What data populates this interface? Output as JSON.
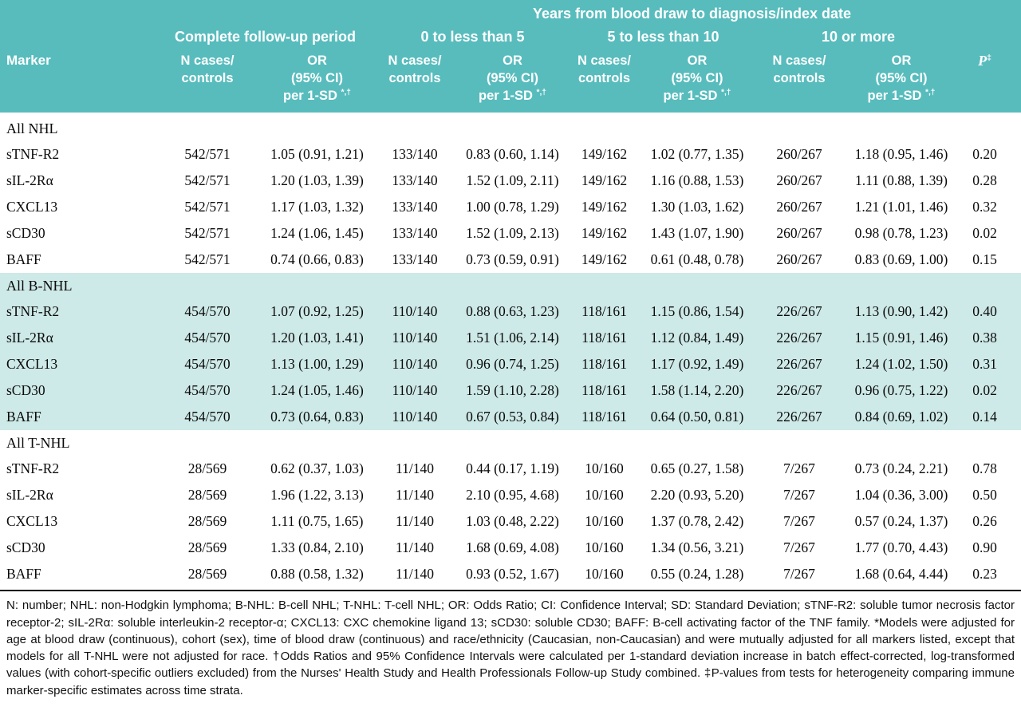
{
  "colors": {
    "header_bg": "#58bcbd",
    "band_bg": "#cde9e8",
    "header_text": "#ffffff"
  },
  "table": {
    "top_header": "Years from blood draw to diagnosis/index date",
    "marker_col": "Marker",
    "p_label": "P",
    "p_sup": "‡",
    "groups": [
      {
        "label": "Complete follow-up period"
      },
      {
        "label": "0 to less than 5"
      },
      {
        "label": "5 to less than 10"
      },
      {
        "label": "10 or more"
      }
    ],
    "subheaders": {
      "n": "N cases/\ncontrols",
      "or1": "OR",
      "or2": "(95% CI)",
      "or3": "per 1-SD",
      "or_sup": "*,†"
    },
    "sections": [
      {
        "title": "All NHL",
        "highlight": false,
        "rows": [
          {
            "marker": "sTNF-R2",
            "cells": [
              "542/571",
              "1.05 (0.91, 1.21)",
              "133/140",
              "0.83 (0.60, 1.14)",
              "149/162",
              "1.02 (0.77, 1.35)",
              "260/267",
              "1.18 (0.95, 1.46)",
              "0.20"
            ]
          },
          {
            "marker": "sIL-2Rα",
            "cells": [
              "542/571",
              "1.20 (1.03, 1.39)",
              "133/140",
              "1.52 (1.09, 2.11)",
              "149/162",
              "1.16 (0.88, 1.53)",
              "260/267",
              "1.11 (0.88, 1.39)",
              "0.28"
            ]
          },
          {
            "marker": "CXCL13",
            "cells": [
              "542/571",
              "1.17 (1.03, 1.32)",
              "133/140",
              "1.00 (0.78, 1.29)",
              "149/162",
              "1.30 (1.03, 1.62)",
              "260/267",
              "1.21 (1.01, 1.46)",
              "0.32"
            ]
          },
          {
            "marker": "sCD30",
            "cells": [
              "542/571",
              "1.24 (1.06, 1.45)",
              "133/140",
              "1.52 (1.09, 2.13)",
              "149/162",
              "1.43 (1.07, 1.90)",
              "260/267",
              "0.98 (0.78, 1.23)",
              "0.02"
            ]
          },
          {
            "marker": "BAFF",
            "cells": [
              "542/571",
              "0.74 (0.66, 0.83)",
              "133/140",
              "0.73 (0.59, 0.91)",
              "149/162",
              "0.61 (0.48, 0.78)",
              "260/267",
              "0.83 (0.69, 1.00)",
              "0.15"
            ]
          }
        ]
      },
      {
        "title": "All B-NHL",
        "highlight": true,
        "rows": [
          {
            "marker": "sTNF-R2",
            "cells": [
              "454/570",
              "1.07 (0.92, 1.25)",
              "110/140",
              "0.88 (0.63, 1.23)",
              "118/161",
              "1.15 (0.86, 1.54)",
              "226/267",
              "1.13 (0.90, 1.42)",
              "0.40"
            ]
          },
          {
            "marker": "sIL-2Rα",
            "cells": [
              "454/570",
              "1.20 (1.03, 1.41)",
              "110/140",
              "1.51 (1.06, 2.14)",
              "118/161",
              "1.12 (0.84, 1.49)",
              "226/267",
              "1.15 (0.91, 1.46)",
              "0.38"
            ]
          },
          {
            "marker": "CXCL13",
            "cells": [
              "454/570",
              "1.13 (1.00, 1.29)",
              "110/140",
              "0.96 (0.74, 1.25)",
              "118/161",
              "1.17 (0.92, 1.49)",
              "226/267",
              "1.24 (1.02, 1.50)",
              "0.31"
            ]
          },
          {
            "marker": "sCD30",
            "cells": [
              "454/570",
              "1.24 (1.05, 1.46)",
              "110/140",
              "1.59 (1.10, 2.28)",
              "118/161",
              "1.58 (1.14, 2.20)",
              "226/267",
              "0.96 (0.75, 1.22)",
              "0.02"
            ]
          },
          {
            "marker": "BAFF",
            "cells": [
              "454/570",
              "0.73 (0.64, 0.83)",
              "110/140",
              "0.67 (0.53, 0.84)",
              "118/161",
              "0.64 (0.50, 0.81)",
              "226/267",
              "0.84 (0.69, 1.02)",
              "0.14"
            ]
          }
        ]
      },
      {
        "title": "All T-NHL",
        "highlight": false,
        "rows": [
          {
            "marker": "sTNF-R2",
            "cells": [
              "28/569",
              "0.62 (0.37, 1.03)",
              "11/140",
              "0.44 (0.17, 1.19)",
              "10/160",
              "0.65 (0.27, 1.58)",
              "7/267",
              "0.73 (0.24, 2.21)",
              "0.78"
            ]
          },
          {
            "marker": "sIL-2Rα",
            "cells": [
              "28/569",
              "1.96 (1.22, 3.13)",
              "11/140",
              "2.10 (0.95, 4.68)",
              "10/160",
              "2.20 (0.93, 5.20)",
              "7/267",
              "1.04 (0.36, 3.00)",
              "0.50"
            ]
          },
          {
            "marker": "CXCL13",
            "cells": [
              "28/569",
              "1.11 (0.75, 1.65)",
              "11/140",
              "1.03 (0.48, 2.22)",
              "10/160",
              "1.37 (0.78, 2.42)",
              "7/267",
              "0.57 (0.24, 1.37)",
              "0.26"
            ]
          },
          {
            "marker": "sCD30",
            "cells": [
              "28/569",
              "1.33 (0.84, 2.10)",
              "11/140",
              "1.68 (0.69, 4.08)",
              "10/160",
              "1.34 (0.56, 3.21)",
              "7/267",
              "1.77 (0.70, 4.43)",
              "0.90"
            ]
          },
          {
            "marker": "BAFF",
            "cells": [
              "28/569",
              "0.88 (0.58, 1.32)",
              "11/140",
              "0.93 (0.52, 1.67)",
              "10/160",
              "0.55 (0.24, 1.28)",
              "7/267",
              "1.68 (0.64, 4.44)",
              "0.23"
            ]
          }
        ]
      }
    ]
  },
  "footnote": "N: number; NHL: non-Hodgkin lymphoma; B-NHL: B-cell NHL; T-NHL: T-cell NHL; OR: Odds Ratio; CI: Confidence Interval; SD: Standard Deviation; sTNF-R2: soluble tumor necrosis factor receptor-2; sIL-2Rα: soluble interleukin-2 receptor-α; CXCL13: CXC chemokine ligand 13; sCD30: soluble CD30; BAFF: B-cell activating factor of the TNF family. *Models were adjusted for age at blood draw (continuous), cohort (sex), time of blood draw (continuous) and race/ethnicity (Caucasian, non-Caucasian) and were mutually adjusted for all markers listed, except that models for all T-NHL were not adjusted for race. †Odds Ratios and 95% Confidence Intervals were calculated per 1-standard deviation increase in batch effect-corrected, log-transformed values (with cohort-specific outliers excluded) from the Nurses' Health Study and Health Professionals Follow-up Study combined. ‡P-values from tests for heterogeneity comparing immune marker-specific estimates across time strata."
}
